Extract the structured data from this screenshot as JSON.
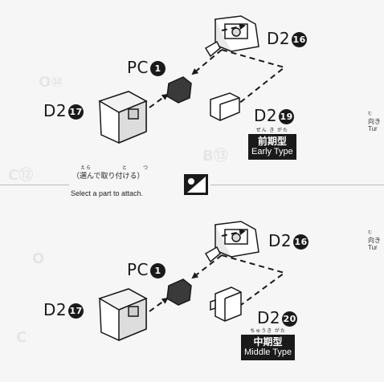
{
  "watermarks": [
    "O⑩",
    "B⑬",
    "C⑫",
    "O",
    "C"
  ],
  "top_step": {
    "pc_label": "PC",
    "pc_number": "1",
    "d2_label_a": "D2",
    "d2_number_a": "16",
    "d2_label_b": "D2",
    "d2_number_b": "17",
    "d2_label_c": "D2",
    "d2_number_c": "19",
    "tag": {
      "ruby": "ぜん き がた",
      "jp": "前期型",
      "en": "Early Type"
    }
  },
  "divider": {
    "ruby_1": "えら",
    "ruby_2": "と",
    "ruby_3": "つ",
    "jp": "（選んで取り付ける）",
    "en": "Select a part to attach."
  },
  "bottom_step": {
    "pc_label": "PC",
    "pc_number": "1",
    "d2_label_a": "D2",
    "d2_number_a": "16",
    "d2_label_b": "D2",
    "d2_number_b": "17",
    "d2_label_c": "D2",
    "d2_number_c": "20",
    "tag": {
      "ruby": "ちゅうき がた",
      "jp": "中期型",
      "en": "Middle Type"
    }
  },
  "side_note_1": {
    "ruby": "む",
    "jp": "向き",
    "en": "Tur"
  },
  "side_note_2": {
    "ruby": "む",
    "jp": "向き",
    "en": "Tur"
  },
  "colors": {
    "ink": "#1a1a1a",
    "paper": "#f6f6f6",
    "part_dark": "#3a3a3a",
    "part_light": "#ffffff"
  }
}
